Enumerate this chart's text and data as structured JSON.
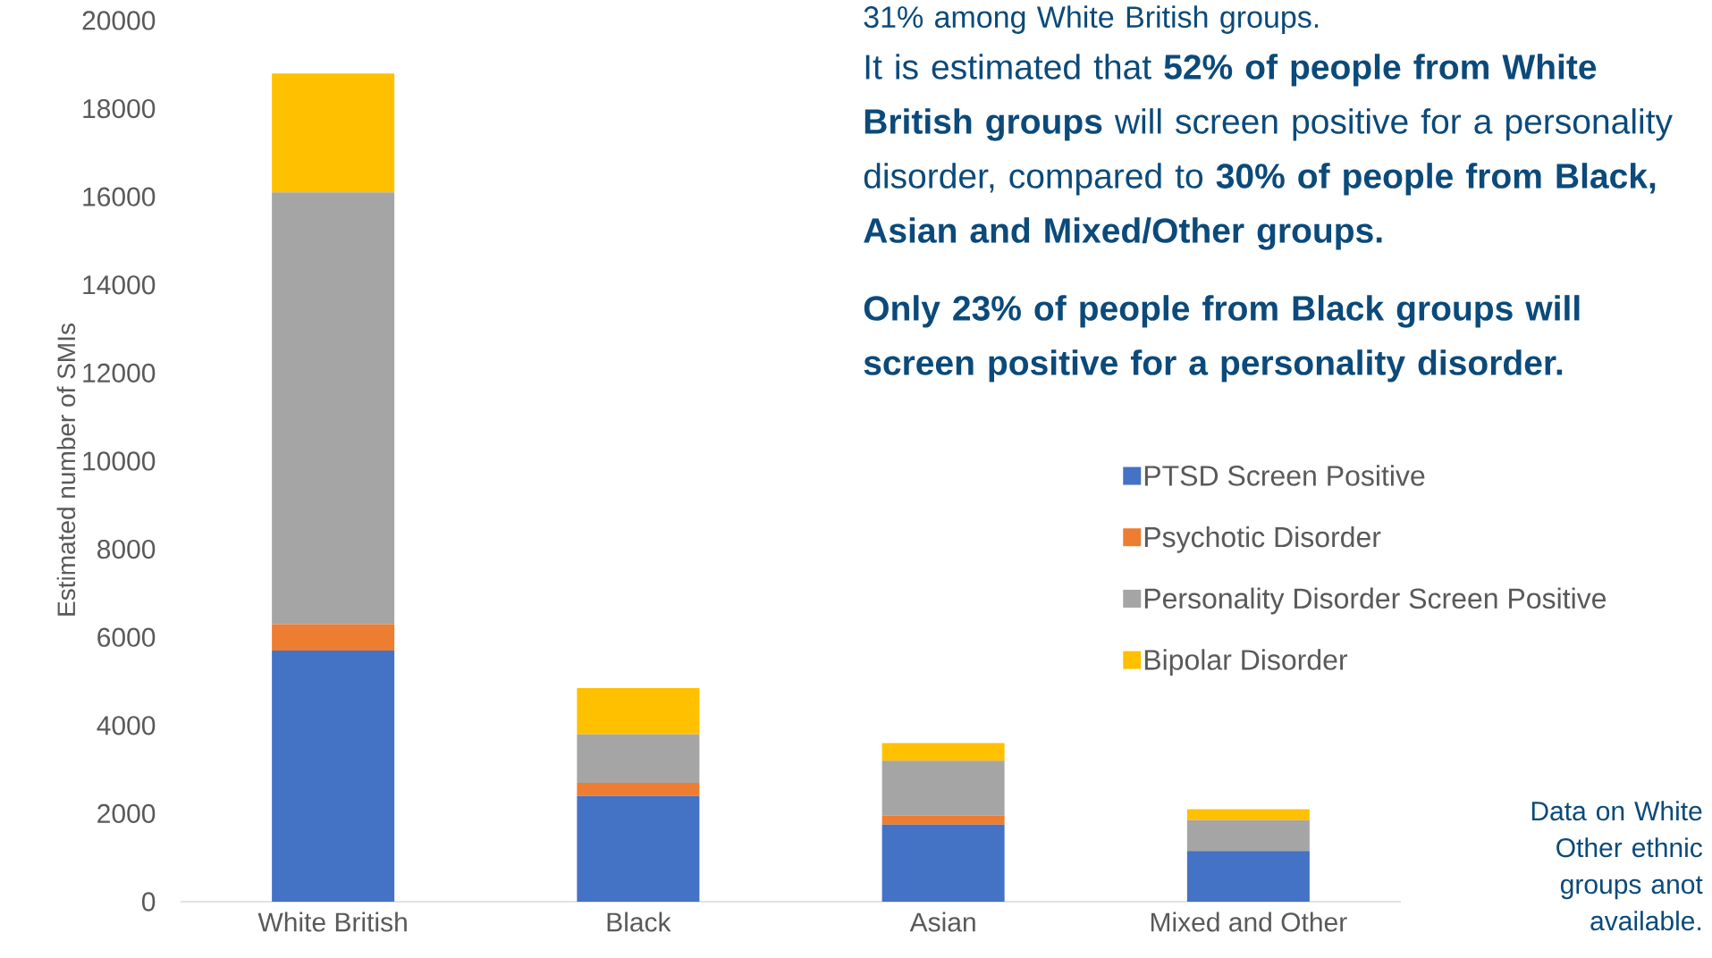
{
  "chart_data": {
    "type": "bar",
    "stacked": true,
    "categories": [
      "White British",
      "Black",
      "Asian",
      "Mixed and Other"
    ],
    "ylabel": "Estimated number of SMIs",
    "ylim": [
      0,
      20000
    ],
    "yticks": [
      0,
      2000,
      4000,
      6000,
      8000,
      10000,
      12000,
      14000,
      16000,
      18000,
      20000
    ],
    "series": [
      {
        "name": "PTSD Screen Positive",
        "color": "#4472c4",
        "values": [
          5700,
          2400,
          1750,
          1150
        ]
      },
      {
        "name": "Psychotic Disorder",
        "color": "#ed7d31",
        "values": [
          600,
          300,
          200,
          0
        ]
      },
      {
        "name": "Personality Disorder Screen Positive",
        "color": "#a5a5a5",
        "values": [
          9800,
          1100,
          1250,
          700
        ]
      },
      {
        "name": "Bipolar Disorder",
        "color": "#ffc000",
        "values": [
          2700,
          1050,
          400,
          250
        ]
      }
    ],
    "legend": "right",
    "annotations": [
      "31% among White British groups.",
      "It is estimated that **52% of people from White British groups** will screen positive for a personality disorder, compared to **30% of people from Black, Asian and Mixed/Other groups.**",
      "Only 23% of people from Black groups will screen positive for a personality disorder.",
      "Data on White Other ethnic groups anot available."
    ]
  }
}
